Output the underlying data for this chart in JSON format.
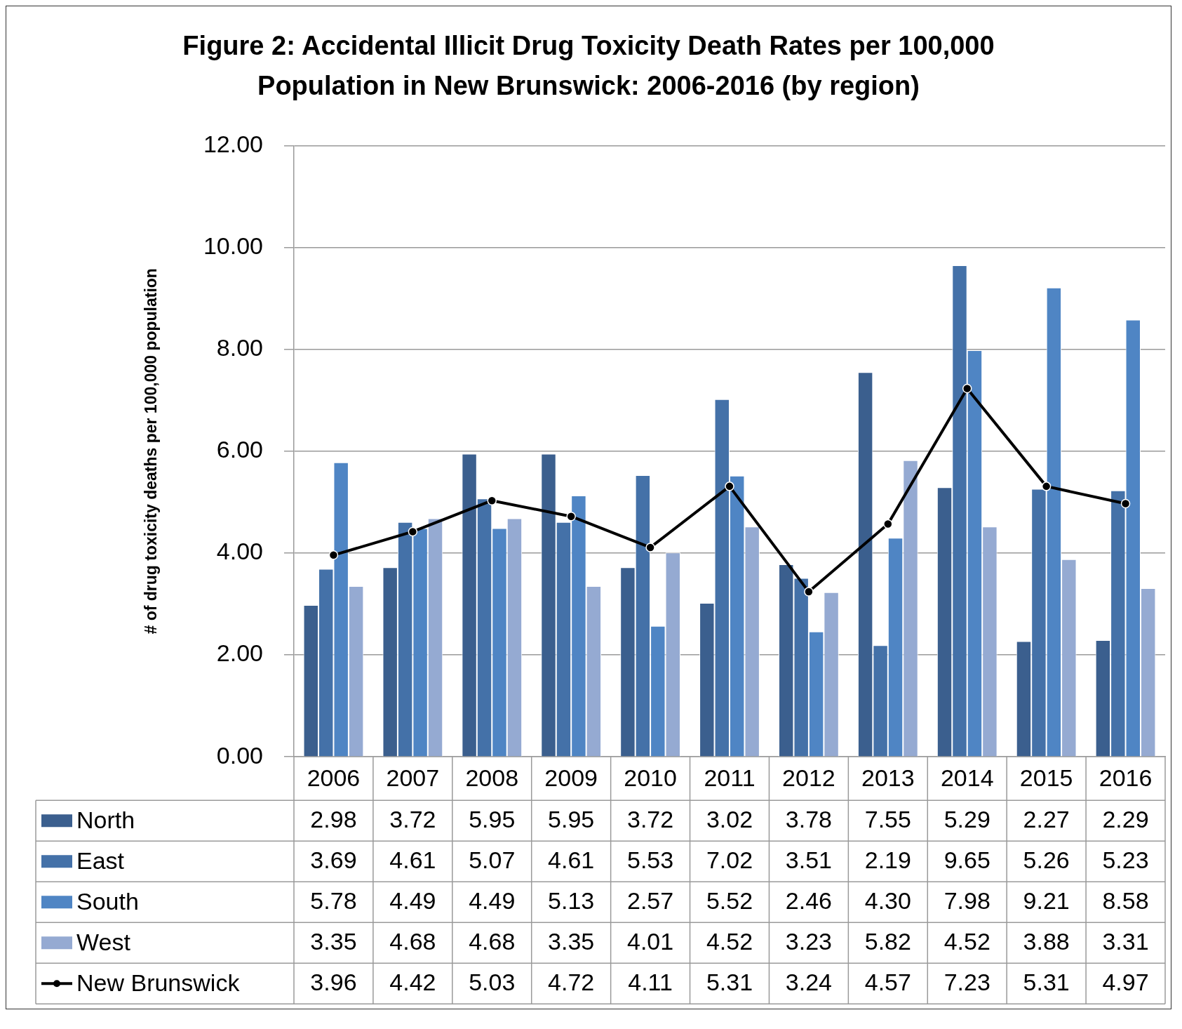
{
  "chart_data": {
    "type": "bar",
    "title": "Figure 2: Accidental Illicit Drug Toxicity Death Rates per 100,000 Population in New Brunswick: 2006-2016 (by region)",
    "ylabel": "# of drug toxicity deaths per 100,000 population",
    "categories": [
      "2006",
      "2007",
      "2008",
      "2009",
      "2010",
      "2011",
      "2012",
      "2013",
      "2014",
      "2015",
      "2016"
    ],
    "ylim": [
      0,
      12
    ],
    "yticks": [
      {
        "value": 0,
        "label": "0.00"
      },
      {
        "value": 2,
        "label": "2.00"
      },
      {
        "value": 4,
        "label": "4.00"
      },
      {
        "value": 6,
        "label": "6.00"
      },
      {
        "value": 8,
        "label": "8.00"
      },
      {
        "value": 10,
        "label": "10.00"
      },
      {
        "value": 12,
        "label": "12.00"
      }
    ],
    "grid": "y",
    "legend": "bottom",
    "marker": "circle",
    "line_style": "solid",
    "series": [
      {
        "name": "North",
        "color": "#3b5f8e",
        "values": [
          2.98,
          3.72,
          5.95,
          5.95,
          3.72,
          3.02,
          3.78,
          7.55,
          5.29,
          2.27,
          2.29
        ],
        "value_labels": [
          "2.98",
          "3.72",
          "5.95",
          "5.95",
          "3.72",
          "3.02",
          "3.78",
          "7.55",
          "5.29",
          "2.27",
          "2.29"
        ]
      },
      {
        "name": "East",
        "color": "#4471a8",
        "values": [
          3.69,
          4.61,
          5.07,
          4.61,
          5.53,
          7.02,
          3.51,
          2.19,
          9.65,
          5.26,
          5.23
        ],
        "value_labels": [
          "3.69",
          "4.61",
          "5.07",
          "4.61",
          "5.53",
          "7.02",
          "3.51",
          "2.19",
          "9.65",
          "5.26",
          "5.23"
        ]
      },
      {
        "name": "South",
        "color": "#4f85c4",
        "values": [
          5.78,
          4.49,
          4.49,
          5.13,
          2.57,
          5.52,
          2.46,
          4.3,
          7.98,
          9.21,
          8.58
        ],
        "value_labels": [
          "5.78",
          "4.49",
          "4.49",
          "5.13",
          "2.57",
          "5.52",
          "2.46",
          "4.30",
          "7.98",
          "9.21",
          "8.58"
        ]
      },
      {
        "name": "West",
        "color": "#95aad2",
        "values": [
          3.35,
          4.68,
          4.68,
          3.35,
          4.01,
          4.52,
          3.23,
          5.82,
          4.52,
          3.88,
          3.31
        ],
        "value_labels": [
          "3.35",
          "4.68",
          "4.68",
          "3.35",
          "4.01",
          "4.52",
          "3.23",
          "5.82",
          "4.52",
          "3.88",
          "3.31"
        ]
      },
      {
        "name": "New Brunswick",
        "type": "line",
        "color": "#000000",
        "values": [
          3.96,
          4.42,
          5.03,
          4.72,
          4.11,
          5.31,
          3.24,
          4.57,
          7.23,
          5.31,
          4.97
        ],
        "value_labels": [
          "3.96",
          "4.42",
          "5.03",
          "4.72",
          "4.11",
          "5.31",
          "3.24",
          "4.57",
          "7.23",
          "5.31",
          "4.97"
        ]
      }
    ]
  }
}
